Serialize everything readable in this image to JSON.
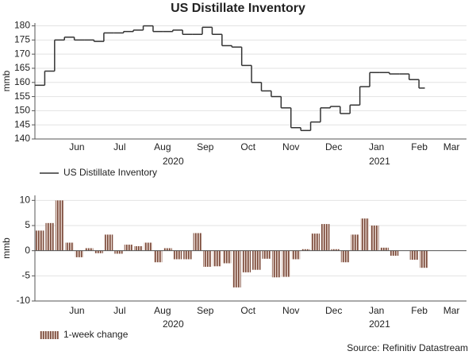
{
  "title": "US Distillate Inventory",
  "source": "Source: Refinitiv Datastream",
  "chart_data": [
    {
      "type": "line",
      "ylabel": "mmb",
      "x": [
        4.52,
        4.75,
        4.98,
        5.21,
        5.44,
        5.67,
        5.9,
        6.13,
        6.36,
        6.59,
        6.82,
        7.05,
        7.28,
        7.51,
        7.74,
        7.97,
        8.2,
        8.43,
        8.66,
        8.89,
        9.12,
        9.35,
        9.58,
        9.81,
        10.04,
        10.27,
        10.5,
        10.73,
        10.96,
        11.19,
        11.42,
        11.65,
        11.88,
        12.11,
        12.34,
        12.57,
        12.8,
        13.03,
        13.26,
        13.49
      ],
      "series": [
        {
          "name": "US Distillate Inventory",
          "color": "#333333",
          "values": [
            159,
            164,
            175,
            176,
            175,
            175,
            174.5,
            177.5,
            177.5,
            178,
            178.5,
            180,
            178,
            178,
            178.5,
            177,
            177,
            179.5,
            177,
            173,
            172.5,
            166,
            160,
            157,
            155,
            151,
            144,
            143,
            146,
            151,
            151.5,
            149,
            152,
            158.5,
            163.5,
            163.5,
            163,
            163,
            161,
            158
          ]
        }
      ],
      "xlim": [
        4.52,
        14.6
      ],
      "xticks": [
        {
          "value": 5.5,
          "label": "Jun"
        },
        {
          "value": 6.5,
          "label": "Jul"
        },
        {
          "value": 7.5,
          "label": "Aug"
        },
        {
          "value": 8.5,
          "label": "Sep"
        },
        {
          "value": 9.5,
          "label": "Oct"
        },
        {
          "value": 10.5,
          "label": "Nov"
        },
        {
          "value": 11.5,
          "label": "Dec"
        },
        {
          "value": 12.5,
          "label": "Jan"
        },
        {
          "value": 13.5,
          "label": "Feb"
        },
        {
          "value": 14.25,
          "label": "Mar"
        }
      ],
      "annotations": [
        {
          "text": "2020",
          "x": 7.75
        },
        {
          "text": "2021",
          "x": 12.57
        }
      ],
      "ylim": [
        140,
        181
      ],
      "yticks": [
        140,
        145,
        150,
        155,
        160,
        165,
        170,
        175,
        180
      ],
      "grid": true
    },
    {
      "type": "bar",
      "ylabel": "mmb",
      "x": [
        4.52,
        4.75,
        4.98,
        5.21,
        5.44,
        5.67,
        5.9,
        6.13,
        6.36,
        6.59,
        6.82,
        7.05,
        7.28,
        7.51,
        7.74,
        7.97,
        8.2,
        8.43,
        8.66,
        8.89,
        9.12,
        9.35,
        9.58,
        9.81,
        10.04,
        10.27,
        10.5,
        10.73,
        10.96,
        11.19,
        11.42,
        11.65,
        11.88,
        12.11,
        12.34,
        12.57,
        12.8,
        13.03,
        13.26,
        13.49
      ],
      "series": [
        {
          "name": "1-week change",
          "color": "#7a4a3a",
          "values": [
            4,
            5.5,
            10,
            1.6,
            -1.3,
            0.5,
            -0.5,
            3.2,
            -0.6,
            1.2,
            0.9,
            1.6,
            -2.3,
            0.5,
            -1.7,
            -1.7,
            3.5,
            -3.2,
            -3.1,
            -2.5,
            -7.3,
            -4.3,
            -3.8,
            -1.6,
            -5.3,
            -5.2,
            -1.7,
            0.3,
            3.4,
            5.3,
            0.3,
            -2.3,
            3.2,
            6.4,
            5,
            0.6,
            -1,
            0,
            -1.8,
            -3.4
          ]
        }
      ],
      "xlim": [
        4.52,
        14.6
      ],
      "xticks": [
        {
          "value": 5.5,
          "label": "Jun"
        },
        {
          "value": 6.5,
          "label": "Jul"
        },
        {
          "value": 7.5,
          "label": "Aug"
        },
        {
          "value": 8.5,
          "label": "Sep"
        },
        {
          "value": 9.5,
          "label": "Oct"
        },
        {
          "value": 10.5,
          "label": "Nov"
        },
        {
          "value": 11.5,
          "label": "Dec"
        },
        {
          "value": 12.5,
          "label": "Jan"
        },
        {
          "value": 13.5,
          "label": "Feb"
        },
        {
          "value": 14.25,
          "label": "Mar"
        }
      ],
      "annotations": [
        {
          "text": "2020",
          "x": 7.75
        },
        {
          "text": "2021",
          "x": 12.57
        }
      ],
      "ylim": [
        -10,
        11
      ],
      "yticks": [
        -10,
        -5,
        0,
        5,
        10
      ],
      "grid": true
    }
  ]
}
